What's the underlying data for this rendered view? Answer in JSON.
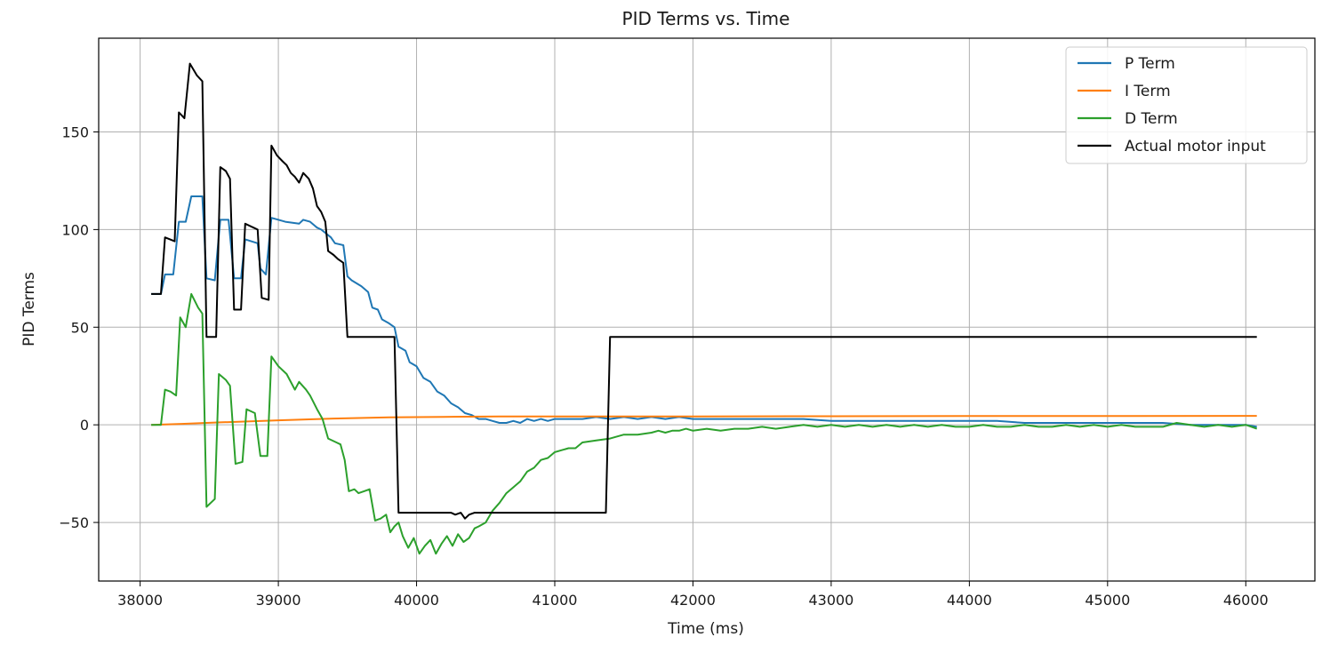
{
  "chart_data": {
    "type": "line",
    "title": "PID Terms vs. Time",
    "xlabel": "Time (ms)",
    "ylabel": "PID Terms",
    "xlim": [
      37700,
      46500
    ],
    "ylim": [
      -80,
      198
    ],
    "xticks": [
      38000,
      39000,
      40000,
      41000,
      42000,
      43000,
      44000,
      45000,
      46000
    ],
    "xtick_labels": [
      "38000",
      "39000",
      "40000",
      "41000",
      "42000",
      "43000",
      "44000",
      "45000",
      "46000"
    ],
    "yticks": [
      -50,
      0,
      50,
      100,
      150
    ],
    "ytick_labels": [
      "−50",
      "0",
      "50",
      "100",
      "150"
    ],
    "grid": true,
    "legend_position": "top-right",
    "series": [
      {
        "name": "P Term",
        "color": "#1f77b4",
        "points": [
          [
            38080,
            67
          ],
          [
            38110,
            67
          ],
          [
            38150,
            67
          ],
          [
            38180,
            77
          ],
          [
            38240,
            77
          ],
          [
            38280,
            104
          ],
          [
            38330,
            104
          ],
          [
            38370,
            117
          ],
          [
            38450,
            117
          ],
          [
            38480,
            75
          ],
          [
            38540,
            74
          ],
          [
            38580,
            105
          ],
          [
            38640,
            105
          ],
          [
            38680,
            75
          ],
          [
            38730,
            75
          ],
          [
            38760,
            95
          ],
          [
            38850,
            93
          ],
          [
            38870,
            80
          ],
          [
            38910,
            77
          ],
          [
            38950,
            106
          ],
          [
            39050,
            104
          ],
          [
            39150,
            103
          ],
          [
            39180,
            105
          ],
          [
            39230,
            104
          ],
          [
            39280,
            101
          ],
          [
            39310,
            100
          ],
          [
            39380,
            96
          ],
          [
            39410,
            93
          ],
          [
            39470,
            92
          ],
          [
            39500,
            76
          ],
          [
            39530,
            74
          ],
          [
            39600,
            71
          ],
          [
            39650,
            68
          ],
          [
            39680,
            60
          ],
          [
            39720,
            59
          ],
          [
            39750,
            54
          ],
          [
            39800,
            52
          ],
          [
            39840,
            50
          ],
          [
            39870,
            40
          ],
          [
            39920,
            38
          ],
          [
            39950,
            32
          ],
          [
            40000,
            30
          ],
          [
            40050,
            24
          ],
          [
            40100,
            22
          ],
          [
            40150,
            17
          ],
          [
            40200,
            15
          ],
          [
            40250,
            11
          ],
          [
            40300,
            9
          ],
          [
            40350,
            6
          ],
          [
            40400,
            5
          ],
          [
            40450,
            3
          ],
          [
            40500,
            3
          ],
          [
            40550,
            2
          ],
          [
            40600,
            1
          ],
          [
            40650,
            1
          ],
          [
            40700,
            2
          ],
          [
            40750,
            1
          ],
          [
            40800,
            3
          ],
          [
            40850,
            2
          ],
          [
            40900,
            3
          ],
          [
            40950,
            2
          ],
          [
            41000,
            3
          ],
          [
            41100,
            3
          ],
          [
            41200,
            3
          ],
          [
            41300,
            4
          ],
          [
            41400,
            3
          ],
          [
            41500,
            4
          ],
          [
            41600,
            3
          ],
          [
            41700,
            4
          ],
          [
            41800,
            3
          ],
          [
            41900,
            4
          ],
          [
            42000,
            3
          ],
          [
            42200,
            3
          ],
          [
            42400,
            3
          ],
          [
            42600,
            3
          ],
          [
            42800,
            3
          ],
          [
            43000,
            2
          ],
          [
            43200,
            2
          ],
          [
            43400,
            2
          ],
          [
            43600,
            2
          ],
          [
            43800,
            2
          ],
          [
            44000,
            2
          ],
          [
            44200,
            2
          ],
          [
            44400,
            1
          ],
          [
            44600,
            1
          ],
          [
            44800,
            1
          ],
          [
            45000,
            1
          ],
          [
            45200,
            1
          ],
          [
            45400,
            1
          ],
          [
            45600,
            0
          ],
          [
            45800,
            0
          ],
          [
            46000,
            0
          ],
          [
            46080,
            -1
          ]
        ]
      },
      {
        "name": "I Term",
        "color": "#ff7f0e",
        "points": [
          [
            38080,
            0
          ],
          [
            38300,
            0.5
          ],
          [
            38600,
            1.3
          ],
          [
            39000,
            2.3
          ],
          [
            39400,
            3.2
          ],
          [
            39800,
            3.8
          ],
          [
            40200,
            4.1
          ],
          [
            40600,
            4.3
          ],
          [
            41000,
            4.3
          ],
          [
            41500,
            4.3
          ],
          [
            42000,
            4.3
          ],
          [
            43000,
            4.4
          ],
          [
            44000,
            4.5
          ],
          [
            45000,
            4.5
          ],
          [
            46080,
            4.6
          ]
        ]
      },
      {
        "name": "D Term",
        "color": "#2ca02c",
        "points": [
          [
            38080,
            0
          ],
          [
            38150,
            0
          ],
          [
            38180,
            18
          ],
          [
            38220,
            17
          ],
          [
            38260,
            15
          ],
          [
            38290,
            55
          ],
          [
            38330,
            50
          ],
          [
            38370,
            67
          ],
          [
            38420,
            60
          ],
          [
            38450,
            57
          ],
          [
            38480,
            -42
          ],
          [
            38540,
            -38
          ],
          [
            38570,
            26
          ],
          [
            38620,
            23
          ],
          [
            38650,
            20
          ],
          [
            38690,
            -20
          ],
          [
            38740,
            -19
          ],
          [
            38770,
            8
          ],
          [
            38830,
            6
          ],
          [
            38870,
            -16
          ],
          [
            38920,
            -16
          ],
          [
            38950,
            35
          ],
          [
            39000,
            30
          ],
          [
            39060,
            26
          ],
          [
            39120,
            18
          ],
          [
            39150,
            22
          ],
          [
            39200,
            18
          ],
          [
            39230,
            15
          ],
          [
            39280,
            8
          ],
          [
            39320,
            3
          ],
          [
            39360,
            -7
          ],
          [
            39420,
            -9
          ],
          [
            39450,
            -10
          ],
          [
            39480,
            -18
          ],
          [
            39510,
            -34
          ],
          [
            39550,
            -33
          ],
          [
            39580,
            -35
          ],
          [
            39620,
            -34
          ],
          [
            39660,
            -33
          ],
          [
            39700,
            -49
          ],
          [
            39740,
            -48
          ],
          [
            39780,
            -46
          ],
          [
            39810,
            -55
          ],
          [
            39840,
            -52
          ],
          [
            39870,
            -50
          ],
          [
            39900,
            -57
          ],
          [
            39940,
            -63
          ],
          [
            39980,
            -58
          ],
          [
            40020,
            -66
          ],
          [
            40060,
            -62
          ],
          [
            40100,
            -59
          ],
          [
            40140,
            -66
          ],
          [
            40180,
            -61
          ],
          [
            40220,
            -57
          ],
          [
            40260,
            -62
          ],
          [
            40300,
            -56
          ],
          [
            40340,
            -60
          ],
          [
            40380,
            -58
          ],
          [
            40420,
            -53
          ],
          [
            40450,
            -52
          ],
          [
            40500,
            -50
          ],
          [
            40550,
            -44
          ],
          [
            40600,
            -40
          ],
          [
            40650,
            -35
          ],
          [
            40700,
            -32
          ],
          [
            40750,
            -29
          ],
          [
            40800,
            -24
          ],
          [
            40850,
            -22
          ],
          [
            40900,
            -18
          ],
          [
            40950,
            -17
          ],
          [
            41000,
            -14
          ],
          [
            41050,
            -13
          ],
          [
            41100,
            -12
          ],
          [
            41150,
            -12
          ],
          [
            41200,
            -9
          ],
          [
            41300,
            -8
          ],
          [
            41400,
            -7
          ],
          [
            41500,
            -5
          ],
          [
            41600,
            -5
          ],
          [
            41700,
            -4
          ],
          [
            41750,
            -3
          ],
          [
            41800,
            -4
          ],
          [
            41850,
            -3
          ],
          [
            41900,
            -3
          ],
          [
            41950,
            -2
          ],
          [
            42000,
            -3
          ],
          [
            42100,
            -2
          ],
          [
            42200,
            -3
          ],
          [
            42300,
            -2
          ],
          [
            42400,
            -2
          ],
          [
            42500,
            -1
          ],
          [
            42600,
            -2
          ],
          [
            42700,
            -1
          ],
          [
            42800,
            0
          ],
          [
            42900,
            -1
          ],
          [
            43000,
            0
          ],
          [
            43100,
            -1
          ],
          [
            43200,
            0
          ],
          [
            43300,
            -1
          ],
          [
            43400,
            0
          ],
          [
            43500,
            -1
          ],
          [
            43600,
            0
          ],
          [
            43700,
            -1
          ],
          [
            43800,
            0
          ],
          [
            43900,
            -1
          ],
          [
            44000,
            -1
          ],
          [
            44100,
            0
          ],
          [
            44200,
            -1
          ],
          [
            44300,
            -1
          ],
          [
            44400,
            0
          ],
          [
            44500,
            -1
          ],
          [
            44600,
            -1
          ],
          [
            44700,
            0
          ],
          [
            44800,
            -1
          ],
          [
            44900,
            0
          ],
          [
            45000,
            -1
          ],
          [
            45100,
            0
          ],
          [
            45200,
            -1
          ],
          [
            45300,
            -1
          ],
          [
            45400,
            -1
          ],
          [
            45500,
            1
          ],
          [
            45600,
            0
          ],
          [
            45700,
            -1
          ],
          [
            45800,
            0
          ],
          [
            45900,
            -1
          ],
          [
            46000,
            0
          ],
          [
            46080,
            -2
          ]
        ]
      },
      {
        "name": "Actual motor input",
        "color": "#000000",
        "points": [
          [
            38080,
            67
          ],
          [
            38150,
            67
          ],
          [
            38180,
            96
          ],
          [
            38250,
            94
          ],
          [
            38280,
            160
          ],
          [
            38320,
            157
          ],
          [
            38360,
            185
          ],
          [
            38410,
            179
          ],
          [
            38450,
            176
          ],
          [
            38480,
            45
          ],
          [
            38550,
            45
          ],
          [
            38580,
            132
          ],
          [
            38620,
            130
          ],
          [
            38650,
            126
          ],
          [
            38680,
            59
          ],
          [
            38730,
            59
          ],
          [
            38760,
            103
          ],
          [
            38820,
            101
          ],
          [
            38850,
            100
          ],
          [
            38880,
            65
          ],
          [
            38930,
            64
          ],
          [
            38950,
            143
          ],
          [
            38990,
            138
          ],
          [
            39030,
            135
          ],
          [
            39060,
            133
          ],
          [
            39090,
            129
          ],
          [
            39120,
            127
          ],
          [
            39150,
            124
          ],
          [
            39180,
            129
          ],
          [
            39220,
            126
          ],
          [
            39250,
            121
          ],
          [
            39280,
            112
          ],
          [
            39310,
            109
          ],
          [
            39340,
            104
          ],
          [
            39360,
            89
          ],
          [
            39400,
            87
          ],
          [
            39430,
            85
          ],
          [
            39470,
            83
          ],
          [
            39500,
            45
          ],
          [
            39840,
            45
          ],
          [
            39870,
            -45
          ],
          [
            40250,
            -45
          ],
          [
            40280,
            -46
          ],
          [
            40320,
            -45
          ],
          [
            40350,
            -48
          ],
          [
            40380,
            -46
          ],
          [
            40420,
            -45
          ],
          [
            41370,
            -45
          ],
          [
            41400,
            45
          ],
          [
            46080,
            45
          ]
        ]
      }
    ]
  }
}
